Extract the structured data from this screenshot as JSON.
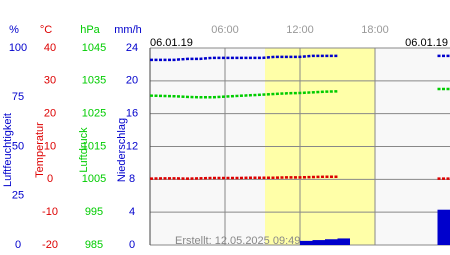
{
  "chart_data": {
    "type": "multi-axis-line",
    "date_left": "06.01.19",
    "date_right": "06.01.19",
    "annotation": "Erstellt: 12.05.2025 09:49",
    "xlim": [
      0,
      24
    ],
    "xticks": [
      {
        "value": 6,
        "label": "06:00"
      },
      {
        "value": 12,
        "label": "12:00"
      },
      {
        "value": 18,
        "label": "18:00"
      }
    ],
    "daylight": [
      9.2,
      18
    ],
    "x": [
      0,
      1,
      2,
      3,
      4,
      5,
      6,
      7,
      8,
      9,
      10,
      11,
      12,
      13,
      14,
      15,
      16,
      17,
      18,
      19,
      20,
      21,
      22,
      23
    ],
    "axes": [
      {
        "unit": "%",
        "label": "Luftfeuchtigkeit",
        "color": "#0000cc",
        "lim": [
          0,
          100
        ],
        "ticks": [
          100,
          75,
          50,
          25,
          0
        ]
      },
      {
        "unit": "°C",
        "label": "Temperatur",
        "color": "#dd0000",
        "lim": [
          -20,
          40
        ],
        "ticks": [
          40,
          30,
          20,
          10,
          0,
          -10,
          -20
        ]
      },
      {
        "unit": "hPa",
        "label": "Luftdruck",
        "color": "#00cc00",
        "lim": [
          985,
          1045
        ],
        "ticks": [
          1045,
          1035,
          1025,
          1015,
          1005,
          995,
          985
        ]
      },
      {
        "unit": "mm/h",
        "label": "Niederschlag",
        "color": "#0000cc",
        "lim": [
          0,
          24
        ],
        "ticks": [
          24,
          20,
          16,
          12,
          8,
          4,
          0
        ]
      }
    ],
    "series": [
      {
        "name": "Luftfeuchtigkeit",
        "axis": 0,
        "kind": "line",
        "color": "#0000cc",
        "values": [
          94,
          94,
          94,
          94.5,
          94.5,
          95,
          95,
          95,
          95,
          95,
          95.5,
          95.5,
          95.5,
          96,
          96,
          96,
          null,
          null,
          null,
          null,
          null,
          null,
          null,
          96
        ]
      },
      {
        "name": "Temperatur",
        "axis": 1,
        "kind": "line",
        "color": "#dd0000",
        "values": [
          0.2,
          0.3,
          0.3,
          0.2,
          0.3,
          0.4,
          0.4,
          0.4,
          0.5,
          0.5,
          0.5,
          0.6,
          0.6,
          0.7,
          0.8,
          0.8,
          null,
          null,
          null,
          null,
          null,
          null,
          null,
          0.2
        ]
      },
      {
        "name": "Luftdruck",
        "axis": 2,
        "kind": "line",
        "color": "#00cc00",
        "values": [
          1030.5,
          1030.4,
          1030.3,
          1030.1,
          1030,
          1030,
          1030.2,
          1030.4,
          1030.6,
          1030.8,
          1031,
          1031.2,
          1031.3,
          1031.5,
          1031.7,
          1031.8,
          null,
          null,
          null,
          null,
          null,
          null,
          null,
          1032.5
        ]
      },
      {
        "name": "Niederschlag",
        "axis": 3,
        "kind": "bar",
        "color": "#0000cc",
        "values": [
          0,
          0,
          0,
          0,
          0,
          0,
          0,
          0,
          0,
          0,
          0,
          0,
          0.5,
          0.6,
          0.7,
          0.8,
          0,
          0,
          0,
          0,
          0,
          0,
          0,
          4.3
        ]
      }
    ]
  }
}
